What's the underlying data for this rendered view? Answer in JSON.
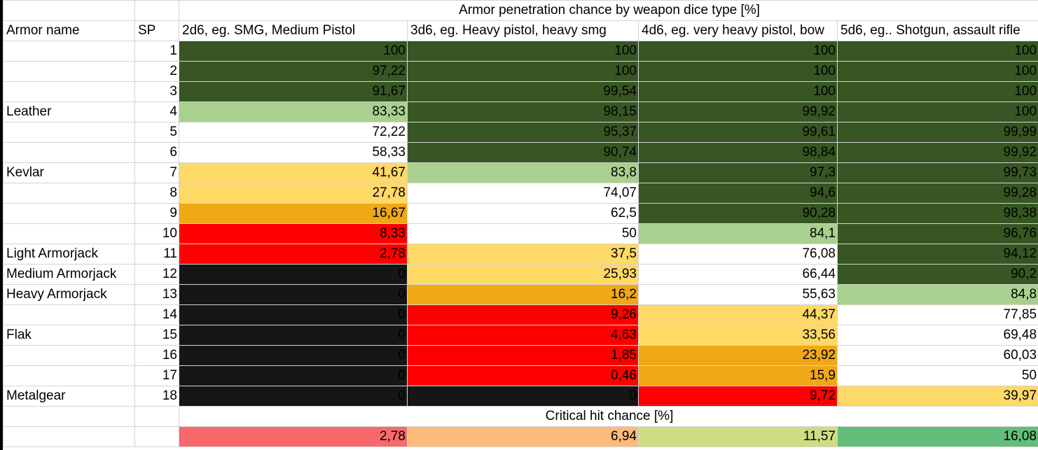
{
  "title": "Armor penetration chance by weapon dice type [%]",
  "headers": {
    "armor_name": "Armor name",
    "sp": "SP",
    "d2": "2d6, eg. SMG, Medium Pistol",
    "d3": "3d6, eg. Heavy pistol, heavy smg",
    "d4": "4d6, eg. very heavy pistol, bow",
    "d5": "5d6, eg.. Shotgun, assault rifle"
  },
  "rows": [
    {
      "armor": "",
      "sp": "1",
      "d2": "100",
      "d3": "100",
      "d4": "100",
      "d5": "100"
    },
    {
      "armor": "",
      "sp": "2",
      "d2": "97,22",
      "d3": "100",
      "d4": "100",
      "d5": "100"
    },
    {
      "armor": "",
      "sp": "3",
      "d2": "91,67",
      "d3": "99,54",
      "d4": "100",
      "d5": "100"
    },
    {
      "armor": "Leather",
      "sp": "4",
      "d2": "83,33",
      "d3": "98,15",
      "d4": "99,92",
      "d5": "100"
    },
    {
      "armor": "",
      "sp": "5",
      "d2": "72,22",
      "d3": "95,37",
      "d4": "99,61",
      "d5": "99,99"
    },
    {
      "armor": "",
      "sp": "6",
      "d2": "58,33",
      "d3": "90,74",
      "d4": "98,84",
      "d5": "99,92"
    },
    {
      "armor": "Kevlar",
      "sp": "7",
      "d2": "41,67",
      "d3": "83,8",
      "d4": "97,3",
      "d5": "99,73"
    },
    {
      "armor": "",
      "sp": "8",
      "d2": "27,78",
      "d3": "74,07",
      "d4": "94,6",
      "d5": "99,28"
    },
    {
      "armor": "",
      "sp": "9",
      "d2": "16,67",
      "d3": "62,5",
      "d4": "90,28",
      "d5": "98,38"
    },
    {
      "armor": "",
      "sp": "10",
      "d2": "8,33",
      "d3": "50",
      "d4": "84,1",
      "d5": "96,76"
    },
    {
      "armor": "Light Armorjack",
      "sp": "11",
      "d2": "2,78",
      "d3": "37,5",
      "d4": "76,08",
      "d5": "94,12"
    },
    {
      "armor": "Medium Armorjack",
      "sp": "12",
      "d2": "0",
      "d3": "25,93",
      "d4": "66,44",
      "d5": "90,2"
    },
    {
      "armor": "Heavy Armorjack",
      "sp": "13",
      "d2": "0",
      "d3": "16,2",
      "d4": "55,63",
      "d5": "84,8"
    },
    {
      "armor": "",
      "sp": "14",
      "d2": "0",
      "d3": "9,26",
      "d4": "44,37",
      "d5": "77,85"
    },
    {
      "armor": "Flak",
      "sp": "15",
      "d2": "0",
      "d3": "4,63",
      "d4": "33,56",
      "d5": "69,48"
    },
    {
      "armor": "",
      "sp": "16",
      "d2": "0",
      "d3": "1,85",
      "d4": "23,92",
      "d5": "60,03"
    },
    {
      "armor": "",
      "sp": "17",
      "d2": "0",
      "d3": "0,46",
      "d4": "15,9",
      "d5": "50"
    },
    {
      "armor": "Metalgear",
      "sp": "18",
      "d2": "0",
      "d3": "0",
      "d4": "9,72",
      "d5": "39,97"
    }
  ],
  "critical": {
    "title": "Critical hit chance [%]",
    "d2": "2,78",
    "d3": "6,94",
    "d4": "11,57",
    "d5": "16,08"
  },
  "colors": {
    "dark_green": "#375623",
    "light_green": "#a9d08e",
    "white": "#ffffff",
    "yellow": "#ffd966",
    "orange": "#f0a817",
    "red": "#ff0000",
    "black": "#161616",
    "critical_scale": [
      "#f8696b",
      "#fbbc7b",
      "#cddd82",
      "#63be7b"
    ]
  }
}
